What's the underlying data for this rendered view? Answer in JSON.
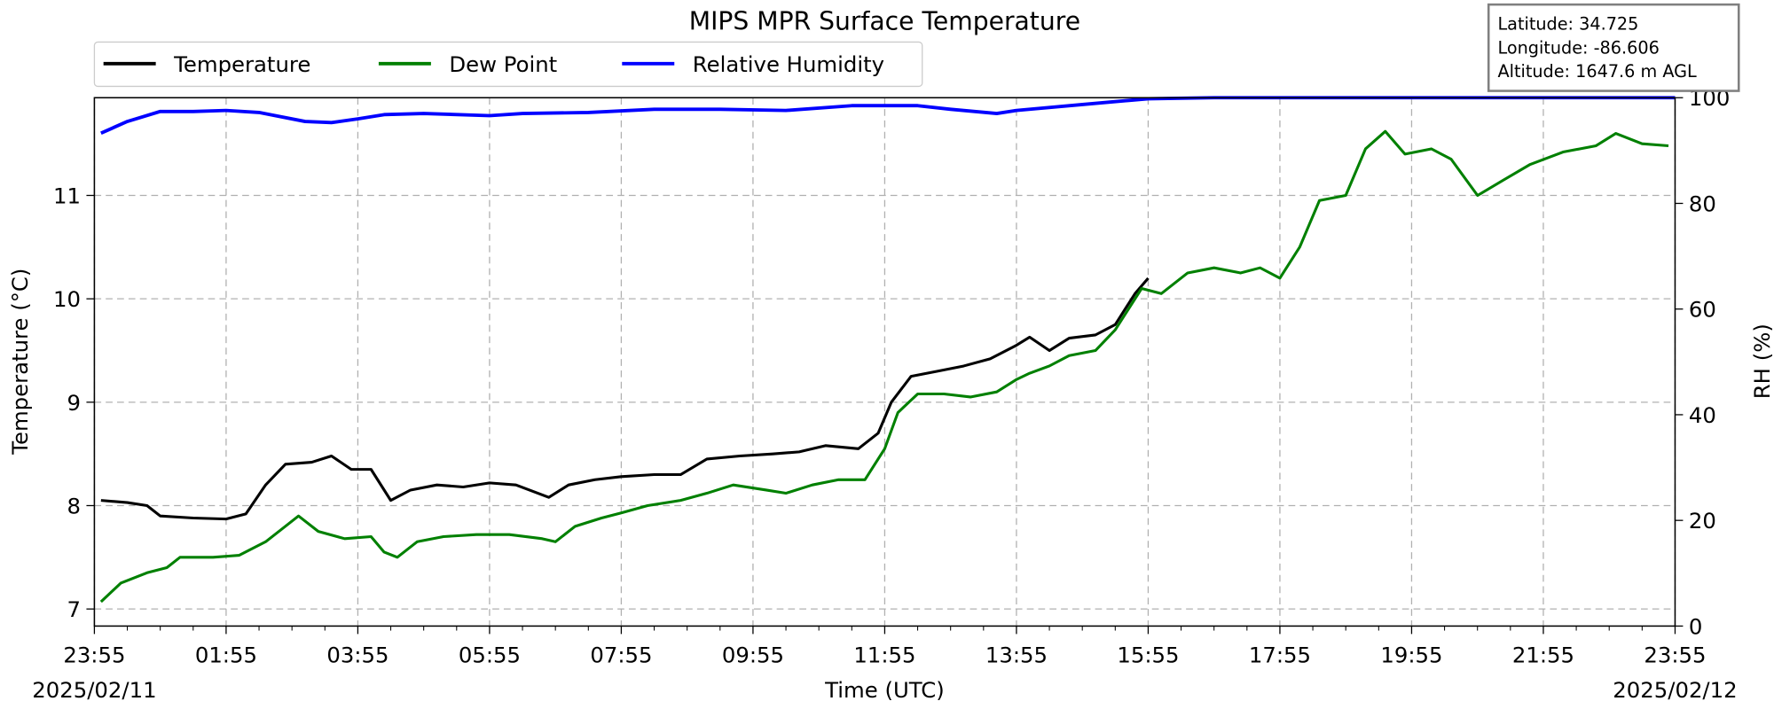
{
  "chart_data": {
    "type": "line",
    "title": "MIPS MPR Surface Temperature",
    "xlabel": "Time (UTC)",
    "ylabel": "Temperature (°C)",
    "y2label": "RH (%)",
    "start_date": "2025/02/11",
    "end_date": "2025/02/12",
    "x_units": "hours since 2025/02/11 23:55 UTC",
    "xlim": [
      0,
      24
    ],
    "ylim": [
      6.835,
      11.945
    ],
    "y2lim": [
      0,
      100
    ],
    "x_ticks": [
      0,
      2,
      4,
      6,
      8,
      10,
      12,
      14,
      16,
      18,
      20,
      22,
      24
    ],
    "x_tick_labels": [
      "23:55",
      "01:55",
      "03:55",
      "05:55",
      "07:55",
      "09:55",
      "11:55",
      "13:55",
      "15:55",
      "17:55",
      "19:55",
      "21:55",
      "23:55"
    ],
    "y_ticks": [
      7,
      8,
      9,
      10,
      11
    ],
    "y_tick_labels": [
      "7",
      "8",
      "9",
      "10",
      "11"
    ],
    "y2_ticks": [
      0,
      20,
      40,
      60,
      80,
      100
    ],
    "y2_tick_labels": [
      "0",
      "20",
      "40",
      "60",
      "80",
      "100"
    ],
    "grid": true,
    "legend_placement": "top-left, above plot",
    "info_box": {
      "latitude": "Latitude: 34.725",
      "longitude": "Longitude: -86.606",
      "altitude": "Altitude: 1647.6 m AGL"
    },
    "series": [
      {
        "name": "Temperature",
        "color": "#000000",
        "axis": "left",
        "x": [
          0.1,
          0.5,
          0.8,
          1.0,
          1.5,
          2.0,
          2.3,
          2.6,
          2.9,
          3.3,
          3.6,
          3.9,
          4.2,
          4.5,
          4.8,
          5.2,
          5.6,
          6.0,
          6.4,
          6.9,
          7.2,
          7.6,
          8.0,
          8.5,
          8.9,
          9.3,
          9.8,
          10.3,
          10.7,
          11.1,
          11.6,
          11.9,
          12.1,
          12.4,
          12.8,
          13.2,
          13.6,
          14.0,
          14.2,
          14.5,
          14.8,
          15.2,
          15.5,
          15.8,
          16.0
        ],
        "y": [
          8.05,
          8.03,
          8.0,
          7.9,
          7.88,
          7.87,
          7.92,
          8.2,
          8.4,
          8.42,
          8.48,
          8.35,
          8.35,
          8.05,
          8.15,
          8.2,
          8.18,
          8.22,
          8.2,
          8.08,
          8.2,
          8.25,
          8.28,
          8.3,
          8.3,
          8.45,
          8.48,
          8.5,
          8.52,
          8.58,
          8.55,
          8.7,
          9.0,
          9.25,
          9.3,
          9.35,
          9.42,
          9.55,
          9.63,
          9.5,
          9.62,
          9.65,
          9.75,
          10.05,
          10.2
        ]
      },
      {
        "name": "Dew Point",
        "color": "#008000",
        "axis": "left",
        "x": [
          0.1,
          0.4,
          0.8,
          1.1,
          1.3,
          1.8,
          2.2,
          2.6,
          2.9,
          3.1,
          3.4,
          3.8,
          4.2,
          4.4,
          4.6,
          4.9,
          5.3,
          5.8,
          6.3,
          6.8,
          7.0,
          7.3,
          7.7,
          8.0,
          8.4,
          8.9,
          9.3,
          9.7,
          10.2,
          10.5,
          10.9,
          11.3,
          11.7,
          12.0,
          12.2,
          12.5,
          12.9,
          13.3,
          13.7,
          14.0,
          14.2,
          14.5,
          14.8,
          15.2,
          15.5,
          15.9,
          16.2,
          16.6,
          17.0,
          17.4,
          17.7,
          18.0,
          18.3,
          18.6,
          19.0,
          19.3,
          19.6,
          19.9,
          20.3,
          20.6,
          21.0,
          21.4,
          21.8,
          22.3,
          22.8,
          23.1,
          23.5,
          23.9
        ],
        "y": [
          7.07,
          7.25,
          7.35,
          7.4,
          7.5,
          7.5,
          7.52,
          7.65,
          7.8,
          7.9,
          7.75,
          7.68,
          7.7,
          7.55,
          7.5,
          7.65,
          7.7,
          7.72,
          7.72,
          7.68,
          7.65,
          7.8,
          7.88,
          7.93,
          8.0,
          8.05,
          8.12,
          8.2,
          8.15,
          8.12,
          8.2,
          8.25,
          8.25,
          8.55,
          8.9,
          9.08,
          9.08,
          9.05,
          9.1,
          9.22,
          9.28,
          9.35,
          9.45,
          9.5,
          9.7,
          10.1,
          10.05,
          10.25,
          10.3,
          10.25,
          10.3,
          10.2,
          10.5,
          10.95,
          11.0,
          11.45,
          11.62,
          11.4,
          11.45,
          11.35,
          11.0,
          11.15,
          11.3,
          11.42,
          11.48,
          11.6,
          11.5,
          11.48
        ]
      },
      {
        "name": "Relative Humidity",
        "color": "#0000ff",
        "axis": "right",
        "x": [
          0.1,
          0.5,
          1.0,
          1.5,
          2.0,
          2.5,
          3.2,
          3.6,
          4.0,
          4.4,
          5.0,
          6.0,
          6.5,
          7.5,
          8.5,
          9.5,
          10.5,
          11.5,
          12.5,
          13.0,
          13.7,
          14.0,
          15.0,
          16.0,
          17.0,
          24.0
        ],
        "y": [
          93.3,
          95.5,
          97.4,
          97.4,
          97.6,
          97.2,
          95.5,
          95.3,
          96.0,
          96.8,
          97.0,
          96.6,
          97.0,
          97.2,
          97.8,
          97.8,
          97.6,
          98.5,
          98.5,
          97.8,
          97.0,
          97.6,
          98.7,
          99.8,
          100,
          100
        ]
      }
    ]
  }
}
